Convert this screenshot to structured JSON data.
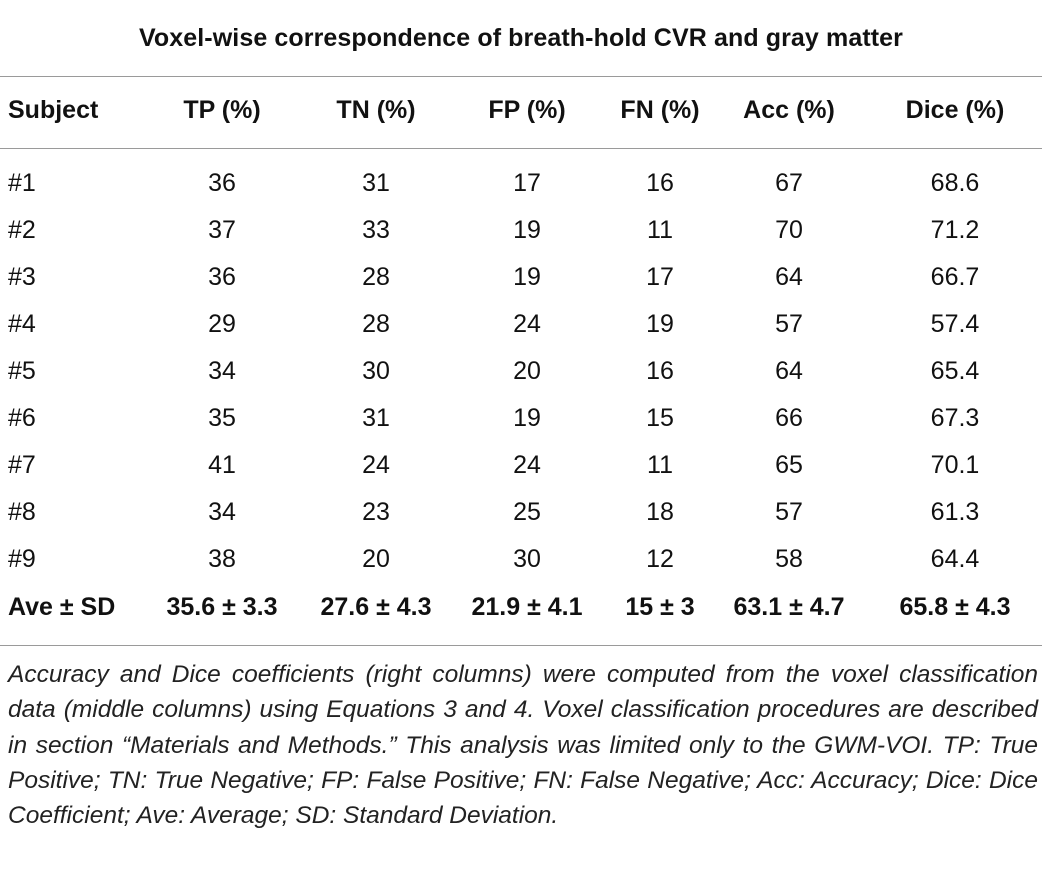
{
  "table": {
    "title": "Voxel-wise correspondence of breath-hold CVR and gray matter",
    "headers": [
      "Subject",
      "TP (%)",
      "TN (%)",
      "FP (%)",
      "FN (%)",
      "Acc (%)",
      "Dice (%)"
    ],
    "rows": [
      [
        "#1",
        "36",
        "31",
        "17",
        "16",
        "67",
        "68.6"
      ],
      [
        "#2",
        "37",
        "33",
        "19",
        "11",
        "70",
        "71.2"
      ],
      [
        "#3",
        "36",
        "28",
        "19",
        "17",
        "64",
        "66.7"
      ],
      [
        "#4",
        "29",
        "28",
        "24",
        "19",
        "57",
        "57.4"
      ],
      [
        "#5",
        "34",
        "30",
        "20",
        "16",
        "64",
        "65.4"
      ],
      [
        "#6",
        "35",
        "31",
        "19",
        "15",
        "66",
        "67.3"
      ],
      [
        "#7",
        "41",
        "24",
        "24",
        "11",
        "65",
        "70.1"
      ],
      [
        "#8",
        "34",
        "23",
        "25",
        "18",
        "57",
        "61.3"
      ],
      [
        "#9",
        "38",
        "20",
        "30",
        "12",
        "58",
        "64.4"
      ]
    ],
    "summary": [
      "Ave ± SD",
      "35.6 ± 3.3",
      "27.6 ± 4.3",
      "21.9 ± 4.1",
      "15 ± 3",
      "63.1 ± 4.7",
      "65.8 ± 4.3"
    ]
  },
  "footnote": "Accuracy and Dice coefficients (right columns) were computed from the voxel classification data (middle columns) using Equations 3 and 4. Voxel classification procedures are described in section “Materials and Methods.” This analysis was limited only to the GWM-VOI. TP: True Positive; TN: True Negative; FP: False Positive; FN: False Negative; Acc: Accuracy; Dice: Dice Coefficient; Ave: Average; SD: Standard Deviation."
}
